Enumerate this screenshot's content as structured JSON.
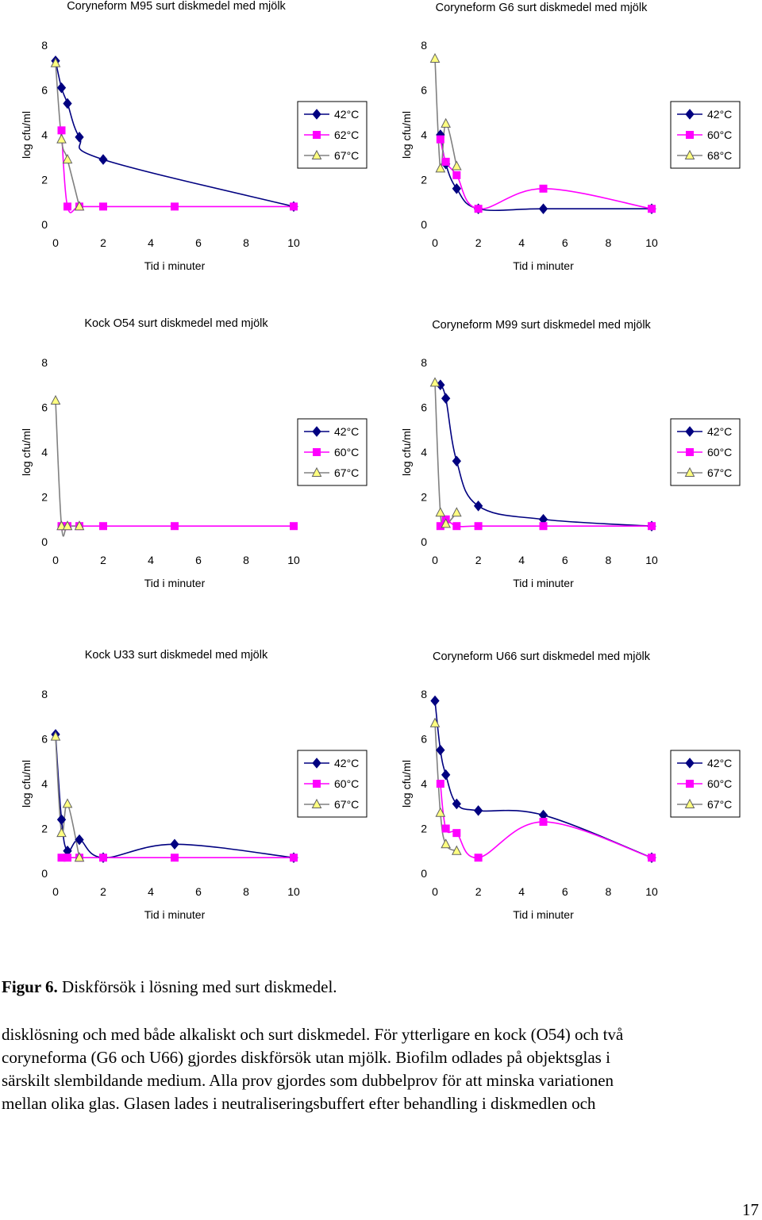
{
  "chart_data": [
    {
      "type": "line",
      "title": "Coryneform M95 surt diskmedel med mjölk",
      "xlabel": "Tid i minuter",
      "ylabel": "log cfu/ml",
      "xlim": [
        0,
        10
      ],
      "ylim": [
        0,
        8
      ],
      "xticks": [
        "0",
        "2",
        "4",
        "6",
        "8",
        "10"
      ],
      "yticks": [
        "0",
        "2",
        "4",
        "6",
        "8"
      ],
      "legend": "right",
      "series": [
        {
          "name": "42°C",
          "color": "#000080",
          "marker": "diamond",
          "x": [
            0,
            0.25,
            0.5,
            1,
            2,
            10
          ],
          "y": [
            7.3,
            6.1,
            5.4,
            3.9,
            2.9,
            0.8
          ]
        },
        {
          "name": "62°C",
          "color": "#ff00ff",
          "marker": "square",
          "x": [
            0.25,
            0.5,
            1,
            2,
            5,
            10
          ],
          "y": [
            4.2,
            0.8,
            0.8,
            0.8,
            0.8,
            0.8
          ]
        },
        {
          "name": "67°C",
          "color": "#808080",
          "marker": "triangle",
          "x": [
            0,
            0.25,
            0.5,
            1
          ],
          "y": [
            7.2,
            3.8,
            2.9,
            0.8
          ]
        }
      ]
    },
    {
      "type": "line",
      "title": "Coryneform G6 surt diskmedel med mjölk",
      "xlabel": "Tid i minuter",
      "ylabel": "log cfu/ml",
      "xlim": [
        0,
        10
      ],
      "ylim": [
        0,
        8
      ],
      "xticks": [
        "0",
        "2",
        "4",
        "6",
        "8",
        "10"
      ],
      "yticks": [
        "0",
        "2",
        "4",
        "6",
        "8"
      ],
      "legend": "right",
      "series": [
        {
          "name": "42°C",
          "color": "#000080",
          "marker": "diamond",
          "x": [
            0.25,
            0.5,
            1,
            2,
            5,
            10
          ],
          "y": [
            4.0,
            2.7,
            1.6,
            0.7,
            0.7,
            0.7
          ]
        },
        {
          "name": "60°C",
          "color": "#ff00ff",
          "marker": "square",
          "x": [
            0.25,
            0.5,
            1,
            2,
            5,
            10
          ],
          "y": [
            3.8,
            2.8,
            2.2,
            0.7,
            1.6,
            0.7
          ]
        },
        {
          "name": "68°C",
          "color": "#808080",
          "marker": "triangle",
          "x": [
            0,
            0.25,
            0.5,
            1
          ],
          "y": [
            7.4,
            2.5,
            4.5,
            2.6
          ]
        }
      ]
    },
    {
      "type": "line",
      "title": "Kock O54 surt diskmedel med mjölk",
      "xlabel": "Tid i minuter",
      "ylabel": "log cfu/ml",
      "xlim": [
        0,
        10
      ],
      "ylim": [
        0,
        8
      ],
      "xticks": [
        "0",
        "2",
        "4",
        "6",
        "8",
        "10"
      ],
      "yticks": [
        "0",
        "2",
        "4",
        "6",
        "8"
      ],
      "legend": "right",
      "series": [
        {
          "name": "42°C",
          "color": "#000080",
          "marker": "diamond",
          "x": [],
          "y": []
        },
        {
          "name": "60°C",
          "color": "#ff00ff",
          "marker": "square",
          "x": [
            0.25,
            0.5,
            1,
            2,
            5,
            10
          ],
          "y": [
            0.7,
            0.7,
            0.7,
            0.7,
            0.7,
            0.7
          ]
        },
        {
          "name": "67°C",
          "color": "#808080",
          "marker": "triangle",
          "x": [
            0,
            0.25,
            0.5,
            1
          ],
          "y": [
            6.3,
            0.7,
            0.7,
            0.7
          ]
        }
      ]
    },
    {
      "type": "line",
      "title": "Coryneform M99 surt diskmedel med mjölk",
      "xlabel": "Tid i minuter",
      "ylabel": "log cfu/ml",
      "xlim": [
        0,
        10
      ],
      "ylim": [
        0,
        8
      ],
      "xticks": [
        "0",
        "2",
        "4",
        "6",
        "8",
        "10"
      ],
      "yticks": [
        "0",
        "2",
        "4",
        "6",
        "8"
      ],
      "legend": "right",
      "series": [
        {
          "name": "42°C",
          "color": "#000080",
          "marker": "diamond",
          "x": [
            0.25,
            0.5,
            1,
            2,
            5,
            10
          ],
          "y": [
            7.0,
            6.4,
            3.6,
            1.6,
            1.0,
            0.7
          ]
        },
        {
          "name": "60°C",
          "color": "#ff00ff",
          "marker": "square",
          "x": [
            0.25,
            0.5,
            1,
            2,
            5,
            10
          ],
          "y": [
            0.7,
            1.0,
            0.7,
            0.7,
            0.7,
            0.7
          ]
        },
        {
          "name": "67°C",
          "color": "#808080",
          "marker": "triangle",
          "x": [
            0,
            0.25,
            0.5,
            1
          ],
          "y": [
            7.1,
            1.3,
            0.8,
            1.3
          ]
        }
      ]
    },
    {
      "type": "line",
      "title": "Kock U33 surt diskmedel med mjölk",
      "xlabel": "Tid i minuter",
      "ylabel": "log cfu/ml",
      "xlim": [
        0,
        10
      ],
      "ylim": [
        0,
        8
      ],
      "xticks": [
        "0",
        "2",
        "4",
        "6",
        "8",
        "10"
      ],
      "yticks": [
        "0",
        "2",
        "4",
        "6",
        "8"
      ],
      "legend": "right",
      "series": [
        {
          "name": "42°C",
          "color": "#000080",
          "marker": "diamond",
          "x": [
            0,
            0.25,
            0.5,
            1,
            2,
            5,
            10
          ],
          "y": [
            6.2,
            2.4,
            1.0,
            1.5,
            0.7,
            1.3,
            0.7
          ]
        },
        {
          "name": "60°C",
          "color": "#ff00ff",
          "marker": "square",
          "x": [
            0.25,
            0.5,
            1,
            2,
            5,
            10
          ],
          "y": [
            0.7,
            0.7,
            0.7,
            0.7,
            0.7,
            0.7
          ]
        },
        {
          "name": "67°C",
          "color": "#808080",
          "marker": "triangle",
          "x": [
            0,
            0.25,
            0.5,
            1
          ],
          "y": [
            6.1,
            1.8,
            3.1,
            0.7
          ]
        }
      ]
    },
    {
      "type": "line",
      "title": "Coryneform U66 surt diskmedel med mjölk",
      "xlabel": "Tid i minuter",
      "ylabel": "log cfu/ml",
      "xlim": [
        0,
        10
      ],
      "ylim": [
        0,
        8
      ],
      "xticks": [
        "0",
        "2",
        "4",
        "6",
        "8",
        "10"
      ],
      "yticks": [
        "0",
        "2",
        "4",
        "6",
        "8"
      ],
      "legend": "right",
      "series": [
        {
          "name": "42°C",
          "color": "#000080",
          "marker": "diamond",
          "x": [
            0,
            0.25,
            0.5,
            1,
            2,
            5,
            10
          ],
          "y": [
            7.7,
            5.5,
            4.4,
            3.1,
            2.8,
            2.6,
            0.7
          ]
        },
        {
          "name": "60°C",
          "color": "#ff00ff",
          "marker": "square",
          "x": [
            0.25,
            0.5,
            1,
            2,
            5,
            10
          ],
          "y": [
            4.0,
            2.0,
            1.8,
            0.7,
            2.3,
            0.7
          ]
        },
        {
          "name": "67°C",
          "color": "#808080",
          "marker": "triangle",
          "x": [
            0,
            0.25,
            0.5,
            1
          ],
          "y": [
            6.7,
            2.7,
            1.3,
            1.0
          ]
        }
      ]
    }
  ],
  "caption": {
    "label": "Figur 6.",
    "text": " Diskförsök i lösning med surt diskmedel."
  },
  "paragraph": [
    "disklösning och med både alkaliskt och surt diskmedel. För ytterligare en kock (O54) och två",
    "coryneforma (G6 och U66) gjordes diskförsök utan mjölk. Biofilm odlades på objektsglas i",
    "särskilt slembildande medium. Alla prov gjordes som dubbelprov för att minska variationen",
    "mellan olika glas. Glasen lades i neutraliseringsbuffert efter behandling i diskmedlen och"
  ],
  "page_number": "17"
}
